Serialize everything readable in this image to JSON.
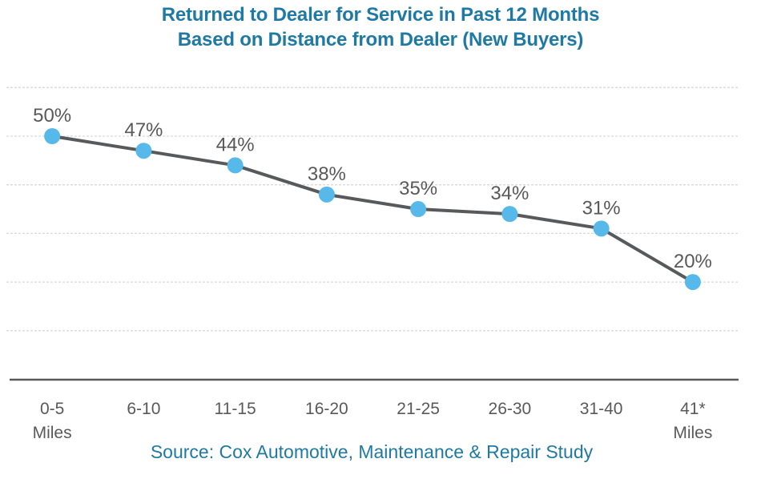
{
  "chart_data": {
    "type": "line",
    "title": "Returned to Dealer for Service in Past 12 Months Based on Distance from Dealer (New Buyers)",
    "title_lines": [
      "Returned to Dealer for Service in Past 12 Months",
      "Based on Distance from Dealer (New Buyers)"
    ],
    "categories": [
      "0-5",
      "6-10",
      "11-15",
      "16-20",
      "21-25",
      "26-30",
      "31-40",
      "41*"
    ],
    "category_sublabels": [
      "Miles",
      "",
      "",
      "",
      "",
      "",
      "",
      "Miles"
    ],
    "values": [
      50,
      47,
      44,
      38,
      35,
      34,
      31,
      20
    ],
    "point_labels": [
      "50%",
      "47%",
      "44%",
      "38%",
      "35%",
      "34%",
      "31%",
      "20%"
    ],
    "xlabel": "",
    "ylabel": "",
    "ylim": [
      0,
      62
    ],
    "grid": {
      "visible": true,
      "min": 10,
      "max": 60,
      "interval": 10,
      "style": "dashed"
    },
    "legend": "none",
    "source": "Source: Cox Automotive, Maintenance & Repair Study",
    "colors": {
      "title": "#1E7AA4",
      "source": "#1E7AA4",
      "series_line": "#58595B",
      "marker": "#56B9E9",
      "gridline": "#D9D9D9",
      "axis": "#595959",
      "text": "#595959"
    }
  }
}
